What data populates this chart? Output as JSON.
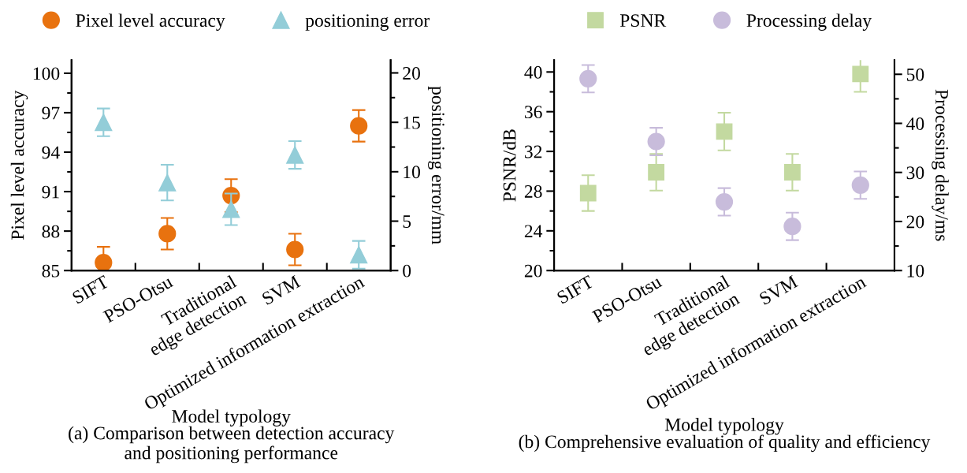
{
  "chart_data": [
    {
      "type": "scatter",
      "title": "(a) Comparison between detection accuracy\nand positioning performance",
      "xlabel": "Model typology",
      "ylabel": "Pixel level accuracy",
      "y2label": "positioning error/mm",
      "categories": [
        "SIFT",
        "PSO-Otsu",
        "Traditional\nedge detection",
        "SVM",
        "Optimized information extraction"
      ],
      "ylim": [
        85,
        101
      ],
      "yticks": [
        85,
        88,
        91,
        94,
        97,
        100
      ],
      "y2lim": [
        0,
        21.3
      ],
      "y2ticks": [
        0,
        5,
        10,
        15,
        20
      ],
      "legend": "top",
      "grid": false,
      "series": [
        {
          "name": "Pixel level accuracy",
          "color": "#e8720f",
          "marker": "circle",
          "values": [
            85.6,
            87.8,
            90.7,
            86.6,
            96.0
          ],
          "errors": [
            1.2,
            1.2,
            1.25,
            1.2,
            1.2
          ]
        },
        {
          "name": "positioning error",
          "color": "#93cdd8",
          "marker": "triangle",
          "axis": "y2",
          "values": [
            15.0,
            8.9,
            6.2,
            11.7,
            1.6
          ],
          "errors": [
            1.4,
            1.8,
            1.6,
            1.4,
            1.4
          ]
        }
      ]
    },
    {
      "type": "scatter",
      "title": "(b) Comprehensive evaluation of quality and efficiency",
      "xlabel": "Model typology",
      "ylabel": "PSNR/dB",
      "y2label": "Processing delay/ms",
      "categories": [
        "SIFT",
        "PSO-Otsu",
        "Traditional\nedge detection",
        "SVM",
        "Optimized information extraction"
      ],
      "ylim": [
        20,
        41.2
      ],
      "yticks": [
        20,
        24,
        28,
        32,
        36,
        40
      ],
      "y2lim": [
        10,
        52.9
      ],
      "y2ticks": [
        10,
        20,
        30,
        40,
        50
      ],
      "legend": "top",
      "grid": false,
      "series": [
        {
          "name": "PSNR",
          "color": "#c3d9a0",
          "marker": "square",
          "values": [
            27.8,
            29.9,
            34.0,
            29.9,
            39.8
          ],
          "errors": [
            1.8,
            1.85,
            1.9,
            1.85,
            1.8
          ]
        },
        {
          "name": "Processing delay",
          "color": "#c8bcdb",
          "marker": "circle",
          "axis": "y2",
          "values": [
            49.1,
            36.3,
            24.0,
            19.0,
            27.4
          ],
          "errors": [
            2.8,
            2.8,
            2.8,
            2.8,
            2.8
          ]
        }
      ]
    }
  ]
}
